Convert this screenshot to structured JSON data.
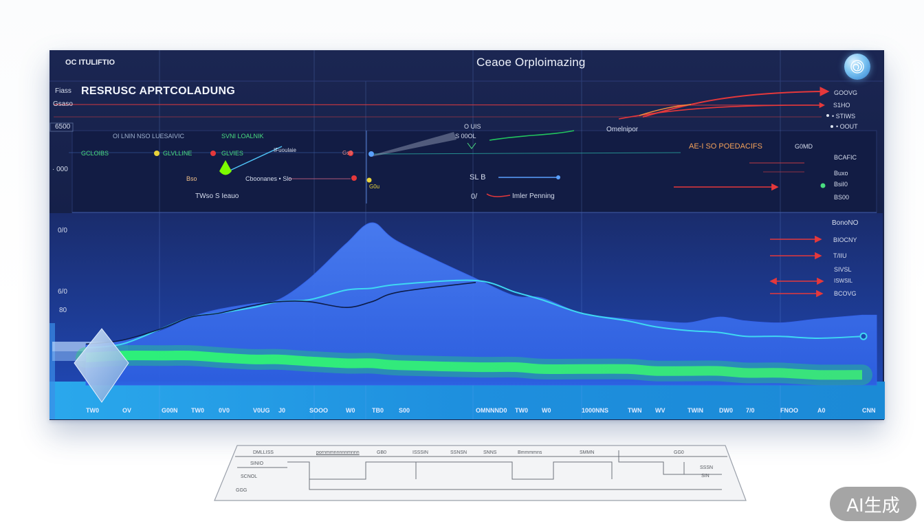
{
  "header": {
    "brand": "OC ITULIFTIO",
    "title": "Ceaoe Orploimazing"
  },
  "panel": {
    "heading_tag": "Fiass",
    "heading": "RESRUSC APRTCOLADUNG",
    "left_labels": [
      "Gsaso",
      "6500",
      "· 000",
      "0/0",
      "6/0",
      "80"
    ],
    "subheader": [
      "OI LNIN NSO LUESAIVIC",
      "SVNI LOALNIK"
    ],
    "legend": [
      "GCLOIBS",
      "GLVLLINE",
      "GLVIES",
      "IFuoulaie",
      "Gs9"
    ],
    "row2": [
      "Bso",
      "Cboonanes • Slo",
      "G0u"
    ],
    "row3": "TWso S Ieauo",
    "center": [
      "O UIS",
      "S 00OL",
      "SL B",
      "0/",
      "Imler Penning"
    ],
    "callout": "Omelnipor",
    "orange_label": "AE-I SO POEDACIFS",
    "orange_suffix": "G0MD",
    "right_labels": [
      "GOOVG",
      "S1HO",
      "• STIWS",
      "• OOUT",
      "BCAFIC",
      "Buxo",
      "BsiI0",
      "BS00",
      "BonoNO",
      "BIOCNY",
      "T/IIU",
      "SIVSL",
      "ISWSIL",
      "BCOVG"
    ]
  },
  "icons": {
    "top_right": "swirl-icon",
    "left_marker": "diamond-icon",
    "legend_marker": "teardrop-icon"
  },
  "colors": {
    "panel": "#17224a",
    "accent_red": "#e5383b",
    "accent_orange": "#f5a25a",
    "accent_green": "#4ade80",
    "strip": "#22a0e6"
  },
  "chart_data": {
    "type": "area",
    "categories": [
      "TW0",
      "OV",
      "G00N",
      "TW0",
      "0V0",
      "V0UG",
      "J0",
      "SOOO",
      "W0",
      "TB0",
      "S00",
      "OMNNND0",
      "TW0",
      "W0",
      "1000NNS",
      "TWN",
      "WV",
      "TWIN",
      "DW0",
      "7/0",
      "FNOO",
      "A0",
      "CNN"
    ],
    "ylim": [
      0,
      100
    ],
    "series": [
      {
        "kind": "area",
        "color": "#3563e9",
        "values": [
          32,
          34,
          39,
          46,
          50,
          53,
          55,
          66,
          84,
          95,
          85,
          66,
          57,
          56,
          48,
          45,
          44,
          43,
          46,
          44,
          43,
          45,
          47
        ]
      },
      {
        "kind": "line",
        "color": "#3fd8f2",
        "values": [
          30,
          32,
          40,
          46,
          48,
          51,
          54,
          55,
          60,
          61,
          63,
          65,
          59,
          55,
          48,
          44,
          41,
          39,
          38,
          36,
          36,
          35,
          36
        ]
      },
      {
        "kind": "line",
        "color": "#0d1c48",
        "values": [
          32,
          34,
          40,
          46,
          48,
          52,
          54,
          54,
          51,
          54,
          59,
          64,
          null,
          null,
          null,
          null,
          null,
          null,
          null,
          null,
          null,
          null,
          null
        ]
      },
      {
        "kind": "band",
        "color": "#22e36b",
        "values": [
          25,
          26,
          26,
          26,
          25,
          24,
          24,
          23,
          22,
          22,
          21,
          20,
          20,
          19,
          19,
          19,
          18,
          18,
          18,
          17,
          17,
          16,
          16
        ]
      }
    ]
  },
  "paper": {
    "labels": [
      "DMLLISS",
      "pornmmnnnnnmnnn",
      "GB0",
      "ISSSIN",
      "SSNSN",
      "SNNS",
      "Bmmmmns",
      "SMMN",
      "GG0",
      "SINIO",
      "SCNOL",
      "GGG",
      "SSSN",
      "SIN"
    ]
  },
  "watermark": "AI生成"
}
